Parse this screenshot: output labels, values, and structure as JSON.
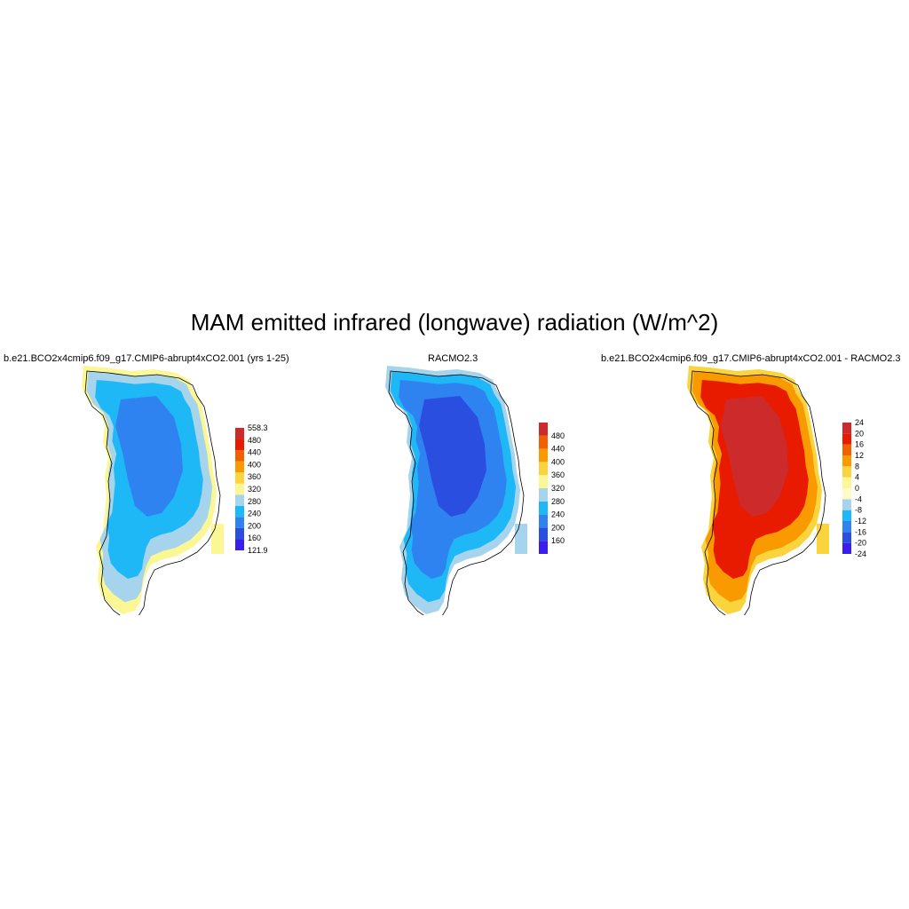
{
  "title": "MAM emitted infrared (longwave) radiation (W/m^2)",
  "panels": [
    {
      "title": "b.e21.BCO2x4cmip6.f09_g17.CMIP6-abrupt4xCO2.001 (yrs 1-25)",
      "colorbar": {
        "colors": [
          "#3a1eee",
          "#2a4fe0",
          "#2f83f0",
          "#1eb8f6",
          "#a6d4ec",
          "#fbf794",
          "#f9d43c",
          "#f99a00",
          "#f26000",
          "#e81a00",
          "#cd2b2b"
        ],
        "labels": [
          "121.9",
          "160",
          "200",
          "240",
          "280",
          "320",
          "360",
          "400",
          "440",
          "480",
          "558.3"
        ]
      },
      "field": {
        "interior": "#2f83f0",
        "middle": "#1eb8f6",
        "edge": "#a6d4ec",
        "coast": "#fbf794"
      }
    },
    {
      "title": "RACMO2.3",
      "colorbar": {
        "colors": [
          "#3a1eee",
          "#2a4fe0",
          "#2f83f0",
          "#1eb8f6",
          "#a6d4ec",
          "#fbf794",
          "#f9d43c",
          "#f99a00",
          "#f26000",
          "#cd2b2b"
        ],
        "labels": [
          "160",
          "200",
          "240",
          "280",
          "320",
          "360",
          "400",
          "440",
          "480"
        ]
      },
      "field": {
        "interior": "#2a4fe0",
        "middle": "#2f83f0",
        "edge": "#1eb8f6",
        "coast": "#a6d4ec"
      }
    },
    {
      "title": "b.e21.BCO2x4cmip6.f09_g17.CMIP6-abrupt4xCO2.001 - RACMO2.3",
      "colorbar": {
        "colors": [
          "#3a1eee",
          "#2a4fe0",
          "#2f83f0",
          "#1eb8f6",
          "#a6d4ec",
          "#fffbc8",
          "#fbf794",
          "#f9d43c",
          "#f99a00",
          "#f26000",
          "#e81a00",
          "#cd2b2b"
        ],
        "labels": [
          "-24",
          "-20",
          "-16",
          "-12",
          "-8",
          "-4",
          "0",
          "4",
          "8",
          "12",
          "16",
          "20",
          "24"
        ]
      },
      "field": {
        "interior": "#cd2b2b",
        "middle": "#e81a00",
        "edge": "#f99a00",
        "coast": "#f9d43c"
      }
    }
  ]
}
